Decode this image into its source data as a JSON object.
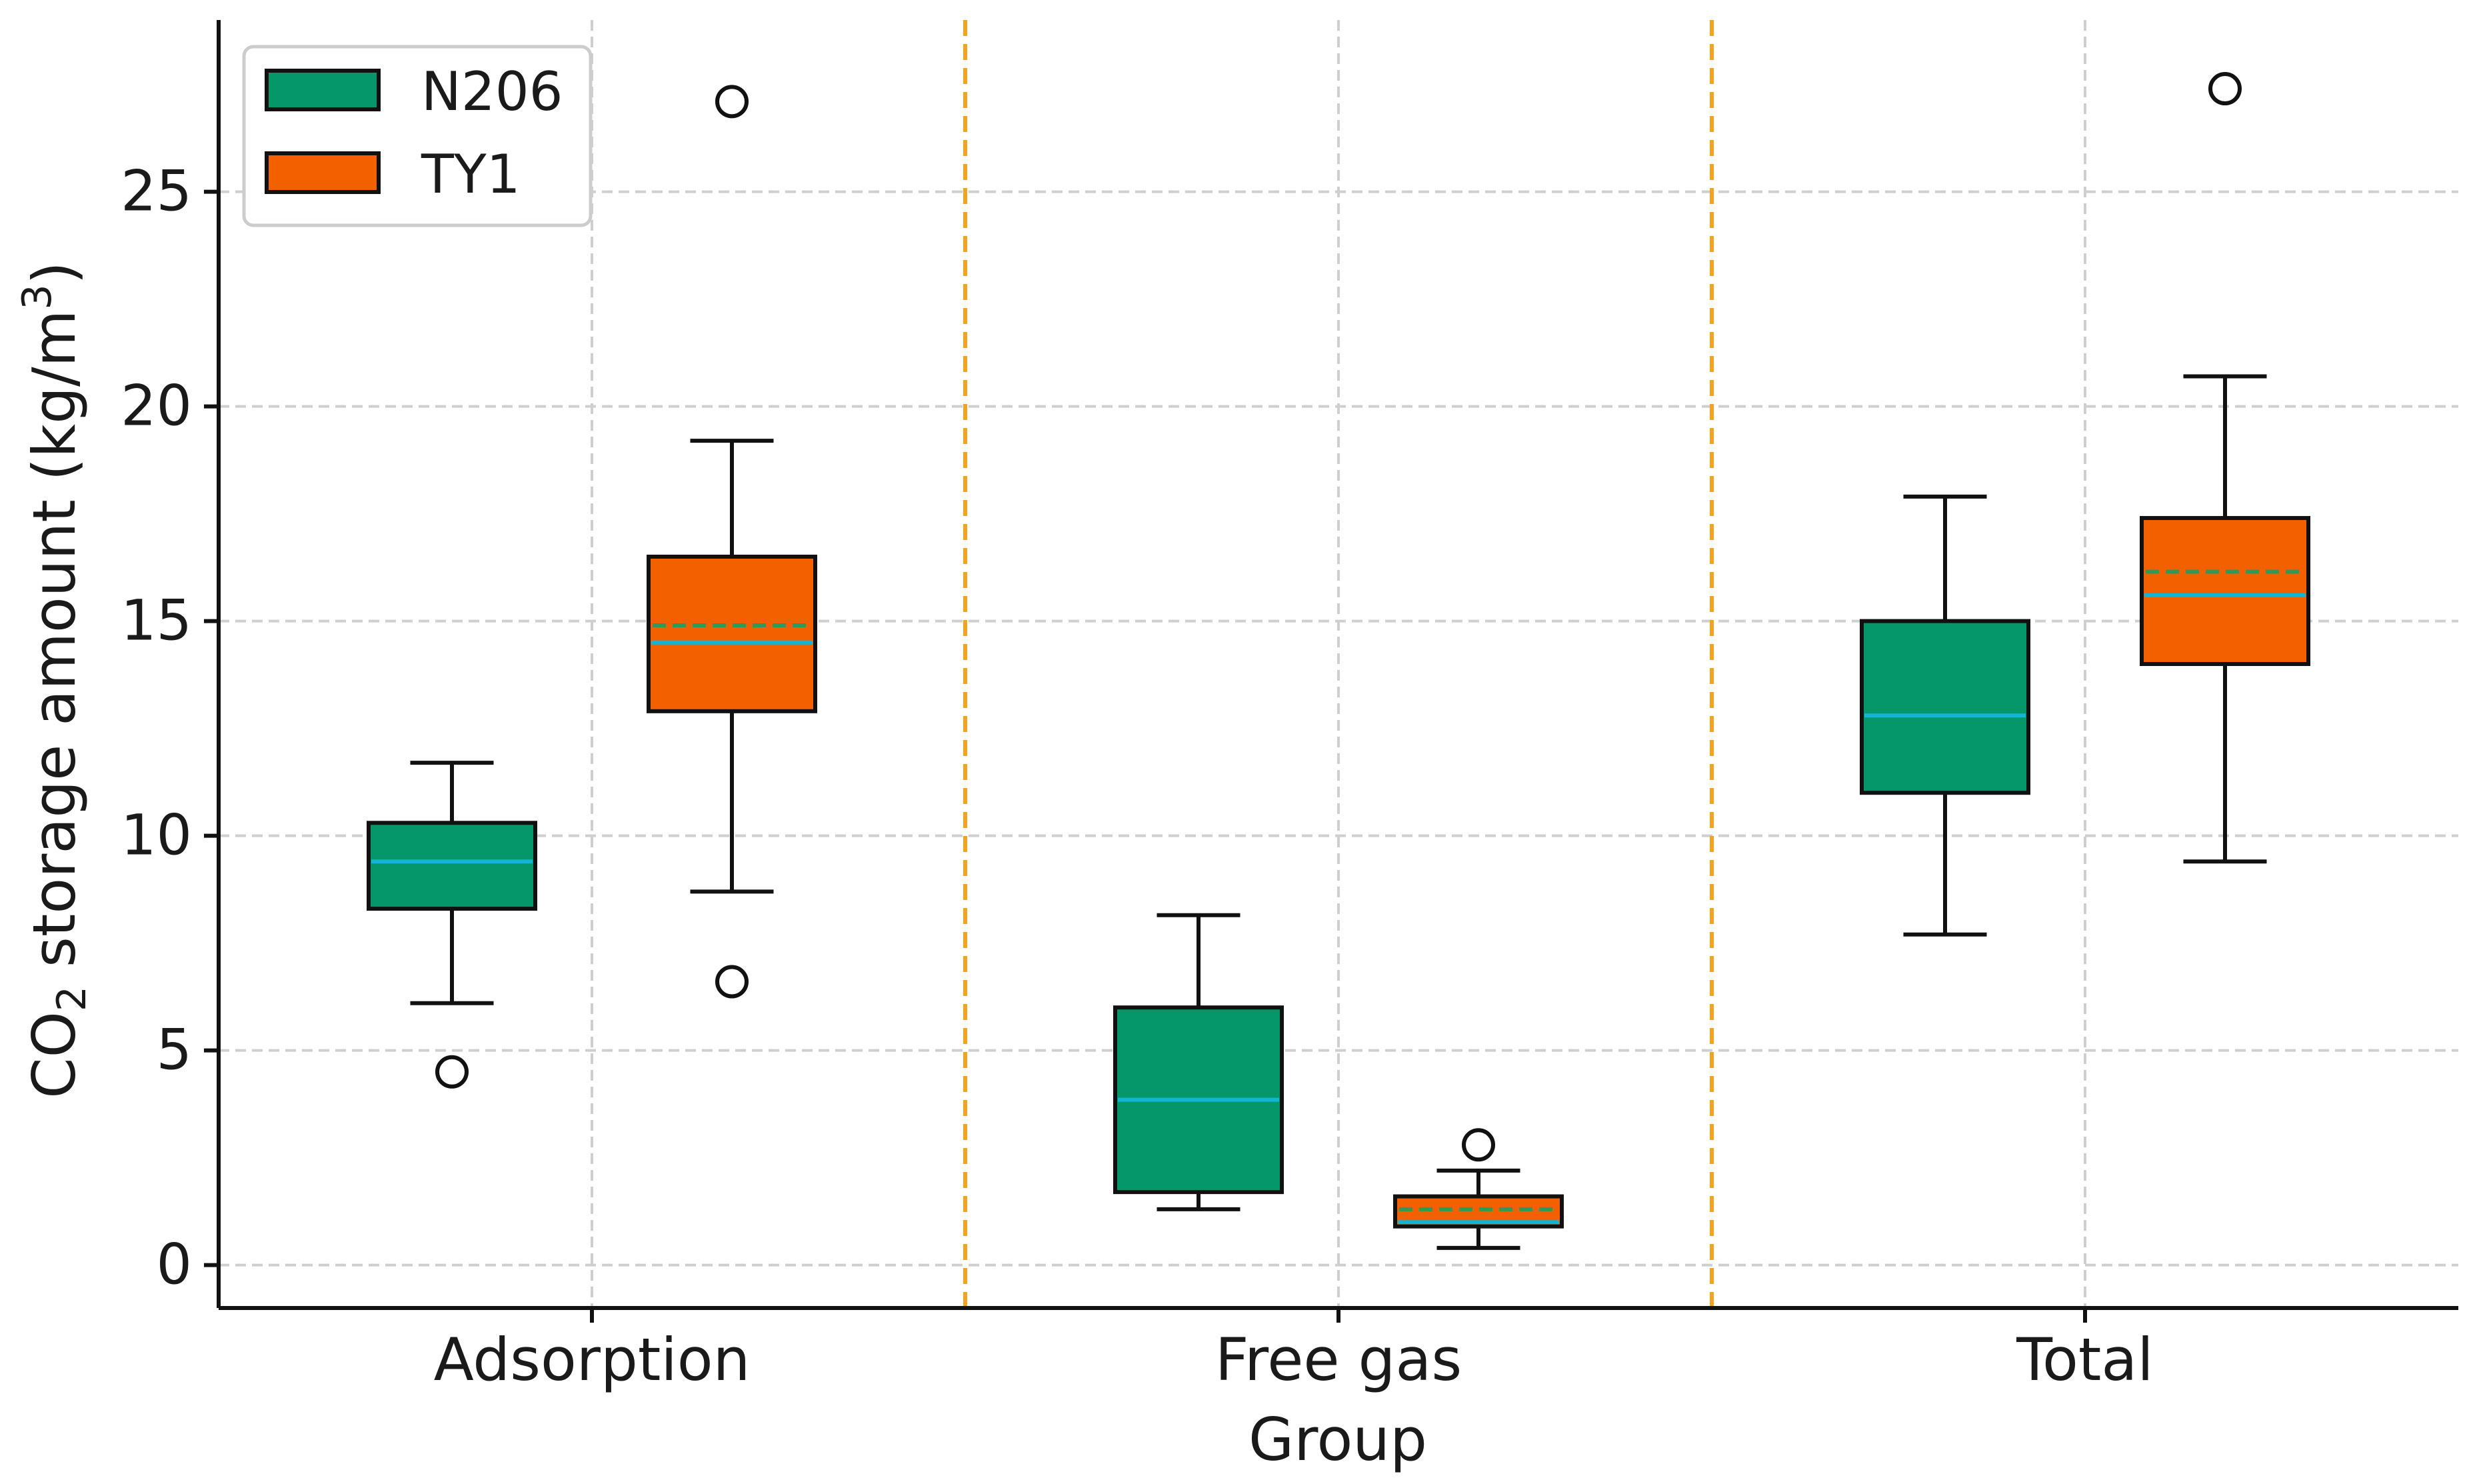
{
  "chart_data": {
    "type": "box",
    "title": "",
    "xlabel": "Group",
    "ylabel": {
      "prefix": "CO",
      "subscript": "2",
      "middle": " storage amount (kg/m",
      "superscript": "3",
      "suffix": ")"
    },
    "categories": [
      "Adsorption",
      "Free gas",
      "Total"
    ],
    "ylim": [
      -1,
      29
    ],
    "yticks": [
      0,
      5,
      10,
      15,
      20,
      25
    ],
    "grid": true,
    "legend_position": "top-left",
    "separators": [
      "between Adsorption and Free gas",
      "between Free gas and Total"
    ],
    "series": [
      {
        "name": "N206",
        "color": "#059669",
        "boxes": [
          {
            "category": "Adsorption",
            "whisker_low": 6.1,
            "q1": 8.3,
            "median": 9.4,
            "q3": 10.3,
            "whisker_high": 11.7,
            "mean": null,
            "outliers": [
              4.5
            ]
          },
          {
            "category": "Free gas",
            "whisker_low": 1.3,
            "q1": 1.7,
            "median": 3.85,
            "q3": 6.0,
            "whisker_high": 8.15,
            "mean": null,
            "outliers": []
          },
          {
            "category": "Total",
            "whisker_low": 7.7,
            "q1": 11.0,
            "median": 12.8,
            "q3": 15.0,
            "whisker_high": 17.9,
            "mean": null,
            "outliers": []
          }
        ]
      },
      {
        "name": "TY1",
        "color": "#f26000",
        "boxes": [
          {
            "category": "Adsorption",
            "whisker_low": 8.7,
            "q1": 12.9,
            "median": 14.5,
            "q3": 16.5,
            "whisker_high": 19.2,
            "mean": 14.9,
            "outliers": [
              6.6,
              27.1
            ]
          },
          {
            "category": "Free gas",
            "whisker_low": 0.4,
            "q1": 0.9,
            "median": 1.0,
            "q3": 1.6,
            "whisker_high": 2.2,
            "mean": 1.3,
            "outliers": [
              2.8
            ]
          },
          {
            "category": "Total",
            "whisker_low": 9.4,
            "q1": 14.0,
            "median": 15.6,
            "q3": 17.4,
            "whisker_high": 20.7,
            "mean": 16.15,
            "outliers": [
              27.4
            ]
          }
        ]
      }
    ],
    "median_color": "#12b5d6",
    "mean_color": "#2e9a5a",
    "separator_color": "#f5a31a"
  }
}
